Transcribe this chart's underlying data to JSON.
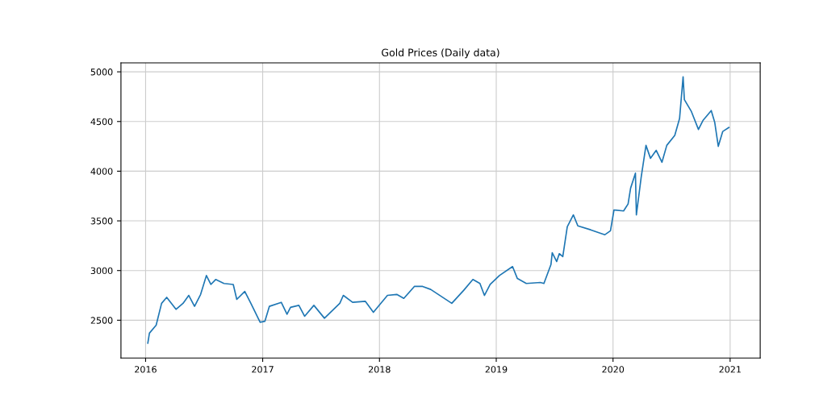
{
  "chart_data": {
    "type": "line",
    "title": "Gold Prices (Daily data)",
    "x": [
      "2016-01-08",
      "2016-01-13",
      "2016-02-03",
      "2016-02-20",
      "2016-03-07",
      "2016-04-05",
      "2016-04-27",
      "2016-05-15",
      "2016-06-02",
      "2016-06-21",
      "2016-07-09",
      "2016-07-23",
      "2016-08-07",
      "2016-09-02",
      "2016-10-01",
      "2016-10-12",
      "2016-11-06",
      "2016-11-25",
      "2016-12-24",
      "2017-01-08",
      "2017-01-22",
      "2017-02-28",
      "2017-03-18",
      "2017-03-29",
      "2017-04-24",
      "2017-05-12",
      "2017-06-10",
      "2017-07-13",
      "2017-08-30",
      "2017-09-10",
      "2017-10-09",
      "2017-11-18",
      "2017-12-13",
      "2018-01-26",
      "2018-02-24",
      "2018-03-18",
      "2018-04-20",
      "2018-05-16",
      "2018-06-10",
      "2018-08-15",
      "2018-09-21",
      "2018-10-20",
      "2018-11-11",
      "2018-11-25",
      "2018-12-13",
      "2019-01-11",
      "2019-02-21",
      "2019-03-08",
      "2019-04-05",
      "2019-05-19",
      "2019-05-30",
      "2019-06-21",
      "2019-06-25",
      "2019-07-09",
      "2019-07-17",
      "2019-07-28",
      "2019-08-11",
      "2019-08-30",
      "2019-09-13",
      "2019-10-23",
      "2019-12-06",
      "2019-12-24",
      "2020-01-04",
      "2020-02-03",
      "2020-02-17",
      "2020-02-25",
      "2020-03-11",
      "2020-03-14",
      "2020-03-29",
      "2020-04-13",
      "2020-04-27",
      "2020-05-15",
      "2020-06-02",
      "2020-06-17",
      "2020-07-12",
      "2020-07-27",
      "2020-08-07",
      "2020-08-11",
      "2020-09-02",
      "2020-09-24",
      "2020-10-08",
      "2020-11-03",
      "2020-11-14",
      "2020-11-25",
      "2020-12-09",
      "2020-12-28"
    ],
    "series": [
      {
        "color": "#1f77b4",
        "values": [
          2270,
          2370,
          2450,
          2670,
          2730,
          2610,
          2670,
          2750,
          2640,
          2760,
          2950,
          2860,
          2910,
          2870,
          2860,
          2710,
          2790,
          2670,
          2480,
          2490,
          2640,
          2680,
          2560,
          2630,
          2650,
          2540,
          2650,
          2520,
          2670,
          2750,
          2680,
          2690,
          2580,
          2750,
          2760,
          2720,
          2840,
          2840,
          2810,
          2670,
          2800,
          2910,
          2870,
          2750,
          2860,
          2950,
          3040,
          2920,
          2870,
          2880,
          2870,
          3060,
          3180,
          3090,
          3170,
          3140,
          3440,
          3560,
          3450,
          3410,
          3360,
          3400,
          3610,
          3600,
          3670,
          3830,
          3980,
          3560,
          3940,
          4260,
          4130,
          4210,
          4090,
          4260,
          4360,
          4530,
          4950,
          4720,
          4600,
          4420,
          4510,
          4610,
          4490,
          4250,
          4400,
          4440
        ]
      }
    ],
    "xlim": [
      "2015-10-16",
      "2021-04-05"
    ],
    "xticks": [
      "2016",
      "2017",
      "2018",
      "2019",
      "2020",
      "2021"
    ],
    "ylim": [
      2120,
      5090
    ],
    "yticks": [
      2500,
      3000,
      3500,
      4000,
      4500,
      5000
    ],
    "grid": true,
    "marker": "none",
    "line_style": "solid"
  }
}
